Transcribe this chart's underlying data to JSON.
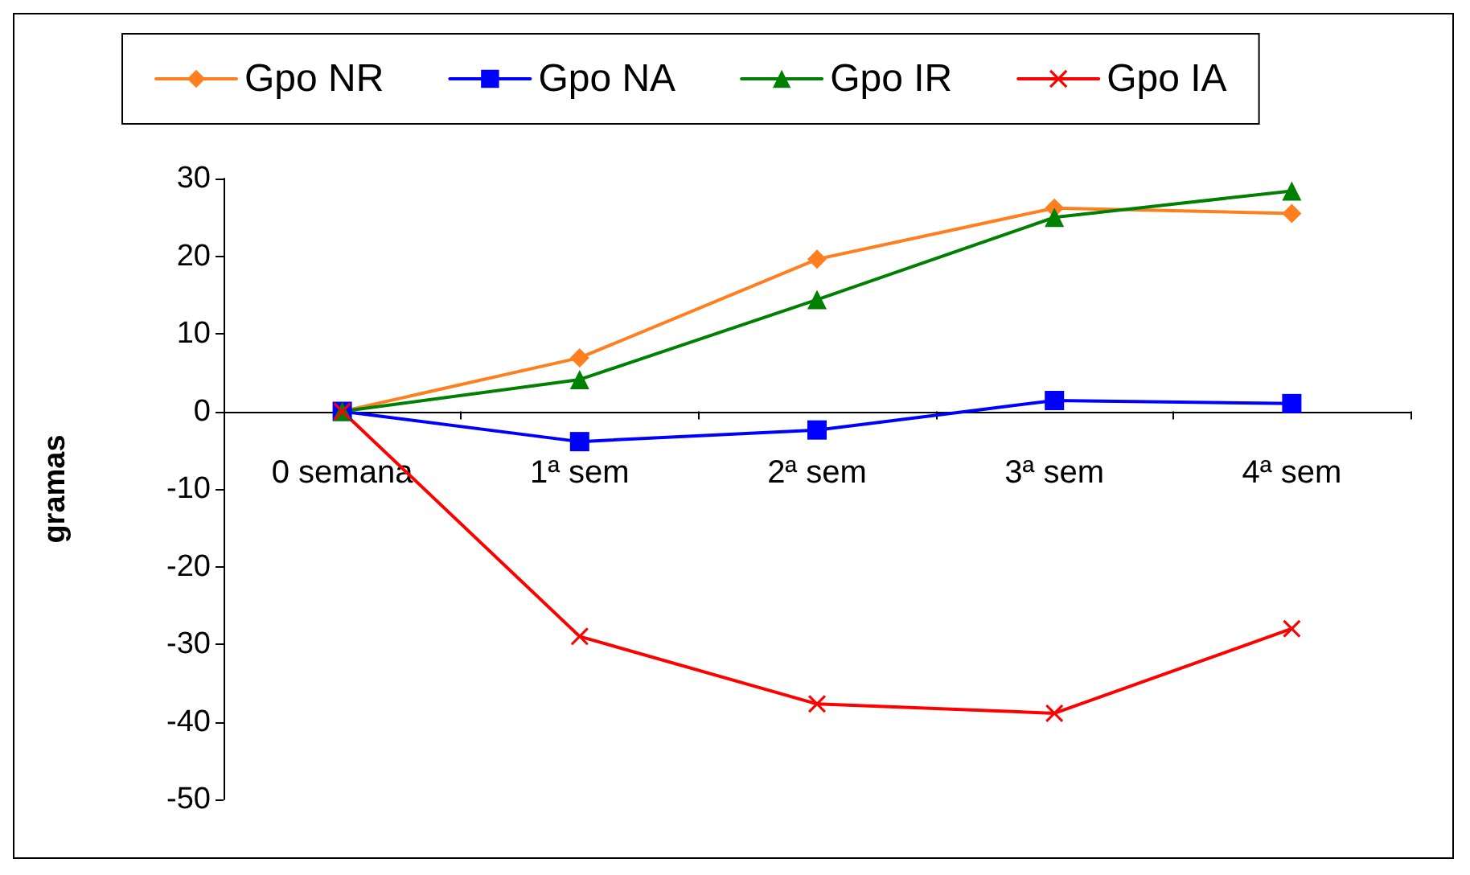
{
  "chart_data": {
    "type": "line",
    "ylabel": "gramas",
    "categories": [
      "0 semana",
      "1ª sem",
      "2ª sem",
      "3ª sem",
      "4ª sem"
    ],
    "series": [
      {
        "name": "Gpo NR",
        "color": "#ff7f1f",
        "marker": "diamond",
        "values": [
          0,
          6.9,
          19.6,
          26.2,
          25.5
        ]
      },
      {
        "name": "Gpo NA",
        "color": "#0000ff",
        "marker": "square",
        "values": [
          0,
          -3.9,
          -2.4,
          1.4,
          1.0
        ]
      },
      {
        "name": "Gpo IR",
        "color": "#008000",
        "marker": "triangle",
        "values": [
          0,
          4.1,
          14.4,
          25.0,
          28.4
        ]
      },
      {
        "name": "Gpo IA",
        "color": "#ff0000",
        "marker": "cross",
        "values": [
          0,
          -29,
          -37.7,
          -38.9,
          -28
        ]
      }
    ],
    "ylim": [
      -50,
      30
    ],
    "yticks": [
      -50,
      -40,
      -30,
      -20,
      -10,
      0,
      10,
      20,
      30
    ],
    "legend": "top",
    "line_style": "solid"
  }
}
